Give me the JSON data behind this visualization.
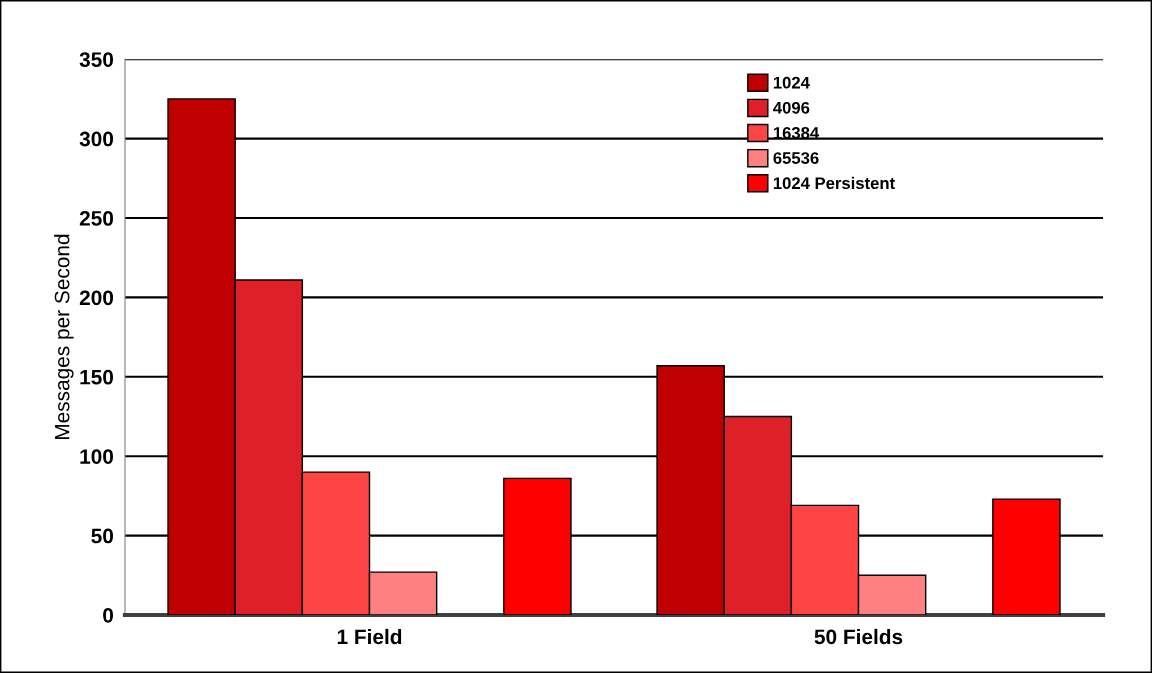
{
  "chart_data": {
    "type": "bar",
    "ylabel": "Messages per Second",
    "categories": [
      "1 Field",
      "50 Fields"
    ],
    "series": [
      {
        "name": "1024",
        "color": "#c00000",
        "values": [
          325,
          157
        ]
      },
      {
        "name": "4096",
        "color": "#e02028",
        "values": [
          211,
          125
        ]
      },
      {
        "name": "16384",
        "color": "#ff4444",
        "values": [
          90,
          69
        ]
      },
      {
        "name": "65536",
        "color": "#ff8080",
        "values": [
          27,
          25
        ]
      },
      {
        "values": [
          null,
          null
        ]
      },
      {
        "name": "1024 Persistent",
        "color": "#ff0000",
        "values": [
          86,
          73
        ]
      }
    ],
    "ylim": [
      0,
      350
    ],
    "yticks": [
      0,
      50,
      100,
      150,
      200,
      250,
      300,
      350
    ],
    "grid": "y",
    "legend": "top right"
  }
}
